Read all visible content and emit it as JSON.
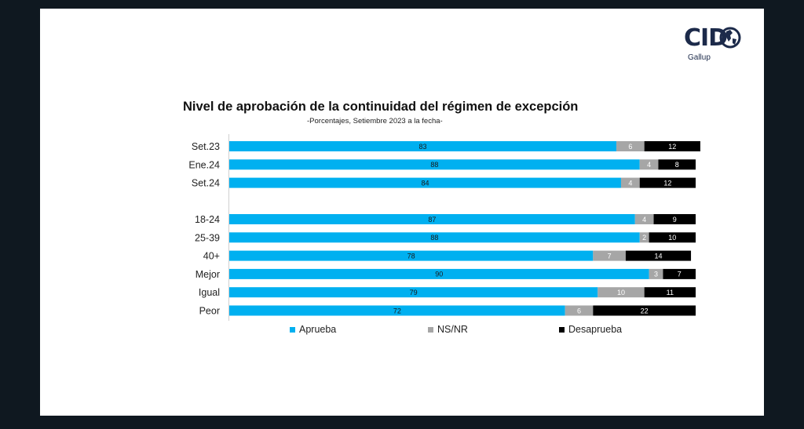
{
  "logo": {
    "brand": "CID",
    "sub": "Gallup"
  },
  "colors": {
    "aprueba": "#00b0f0",
    "nsnr": "#a6a6a6",
    "desaprueba": "#000000"
  },
  "chart_data": {
    "type": "bar",
    "orientation": "horizontal",
    "stacked": true,
    "title": "Nivel de aprobación de la continuidad del régimen de excepción",
    "subtitle": "-Porcentajes, Setiembre 2023 a la fecha-",
    "groups": [
      [
        "Set.23",
        "Ene.24",
        "Set.24"
      ],
      [
        "18-24",
        "25-39",
        "40+",
        "Mejor",
        "Igual",
        "Peor"
      ]
    ],
    "categories": [
      "Set.23",
      "Ene.24",
      "Set.24",
      "18-24",
      "25-39",
      "40+",
      "Mejor",
      "Igual",
      "Peor"
    ],
    "series": [
      {
        "name": "Aprueba",
        "values": [
          83,
          88,
          84,
          87,
          88,
          78,
          90,
          79,
          72
        ]
      },
      {
        "name": "NS/NR",
        "values": [
          6,
          4,
          4,
          4,
          2,
          7,
          3,
          10,
          6
        ]
      },
      {
        "name": "Desaprueba",
        "values": [
          12,
          8,
          12,
          9,
          10,
          14,
          7,
          11,
          22
        ]
      }
    ],
    "xlim": [
      0,
      100
    ],
    "legend": "bottom"
  }
}
